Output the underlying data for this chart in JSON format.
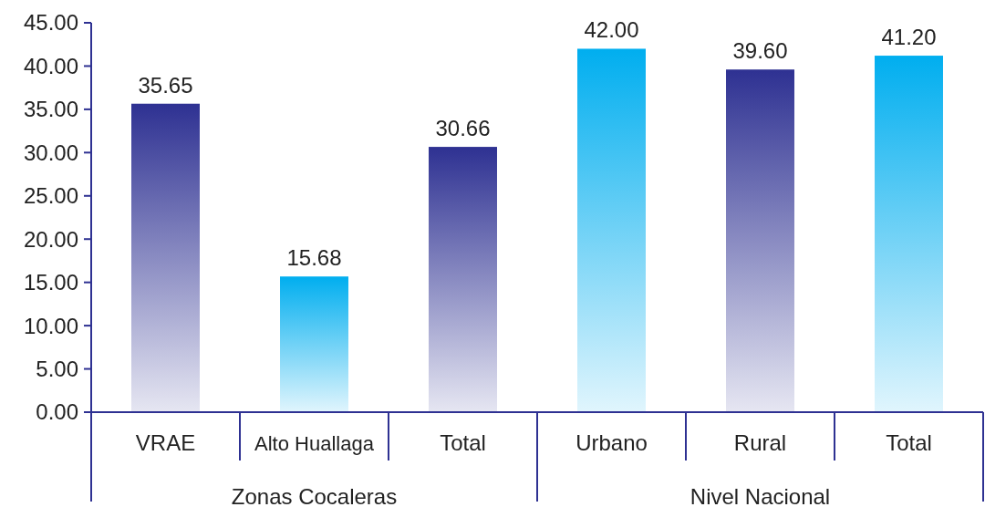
{
  "chart_data": {
    "type": "bar",
    "categories": [
      "VRAE",
      "Alto Huallaga",
      "Total",
      "Urbano",
      "Rural",
      "Total"
    ],
    "values": [
      35.65,
      15.68,
      30.66,
      42.0,
      39.6,
      41.2
    ],
    "value_labels": [
      "35.65",
      "15.68",
      "30.66",
      "42.00",
      "39.60",
      "41.20"
    ],
    "colors": [
      "#2e3192",
      "#00aeef",
      "#2e3192",
      "#00aeef",
      "#2e3192",
      "#00aeef"
    ],
    "ylim": [
      0,
      45
    ],
    "yticks": [
      {
        "value": 0,
        "label": "0.00"
      },
      {
        "value": 5,
        "label": "5.00"
      },
      {
        "value": 10,
        "label": "10.00"
      },
      {
        "value": 15,
        "label": "15.00"
      },
      {
        "value": 20,
        "label": "20.00"
      },
      {
        "value": 25,
        "label": "25.00"
      },
      {
        "value": 30,
        "label": "30.00"
      },
      {
        "value": 35,
        "label": "35.00"
      },
      {
        "value": 40,
        "label": "40.00"
      },
      {
        "value": 45,
        "label": "45.00"
      }
    ],
    "annotations": [
      "Zonas Cocaleras",
      "Nivel Nacional"
    ],
    "grid": false
  }
}
